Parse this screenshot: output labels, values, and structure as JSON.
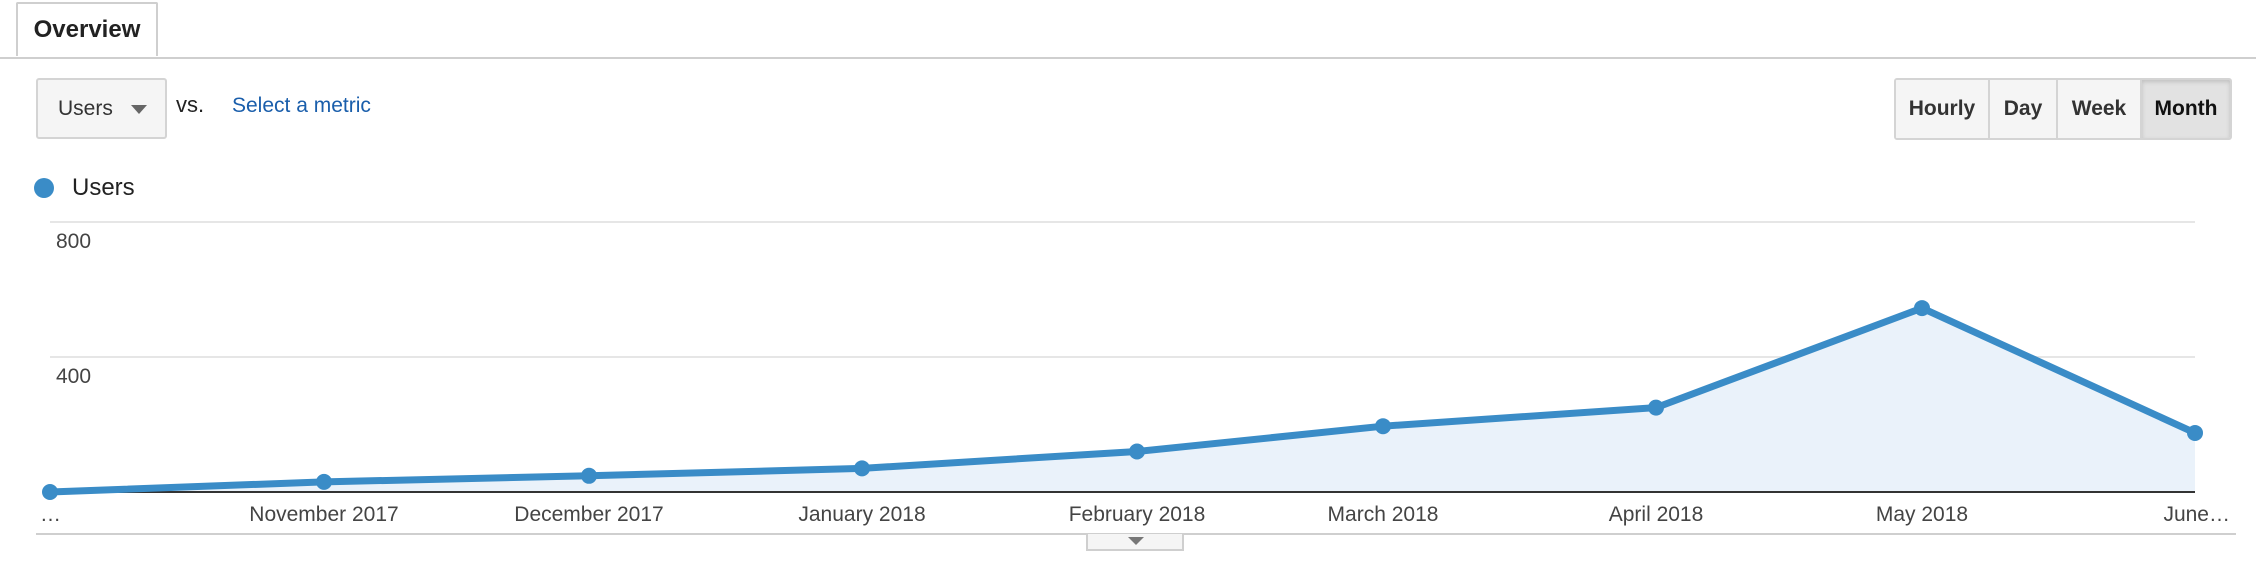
{
  "tabs": [
    {
      "label": "Overview"
    }
  ],
  "controls": {
    "metric_select": {
      "value": "Users",
      "icon": "chevron-down-icon"
    },
    "vs_label": "vs.",
    "select_metric_link": "Select a metric",
    "periods": [
      {
        "label": "Hourly",
        "active": false
      },
      {
        "label": "Day",
        "active": false
      },
      {
        "label": "Week",
        "active": false
      },
      {
        "label": "Month",
        "active": true
      }
    ]
  },
  "legend": [
    {
      "label": "Users",
      "color": "#3a8cc7"
    }
  ],
  "chart_data": {
    "type": "area",
    "x": [
      "…",
      "November 2017",
      "December 2017",
      "January 2018",
      "February 2018",
      "March 2018",
      "April 2018",
      "May 2018",
      "June…"
    ],
    "series": [
      {
        "name": "Users",
        "color": "#3a8cc7",
        "fill": "#eaf2fa",
        "values": [
          0,
          30,
          48,
          70,
          120,
          195,
          250,
          545,
          175
        ]
      }
    ],
    "y_ticks": [
      400,
      800
    ],
    "ylim": [
      0,
      800
    ],
    "grid": true,
    "legend_position": "top-left"
  }
}
